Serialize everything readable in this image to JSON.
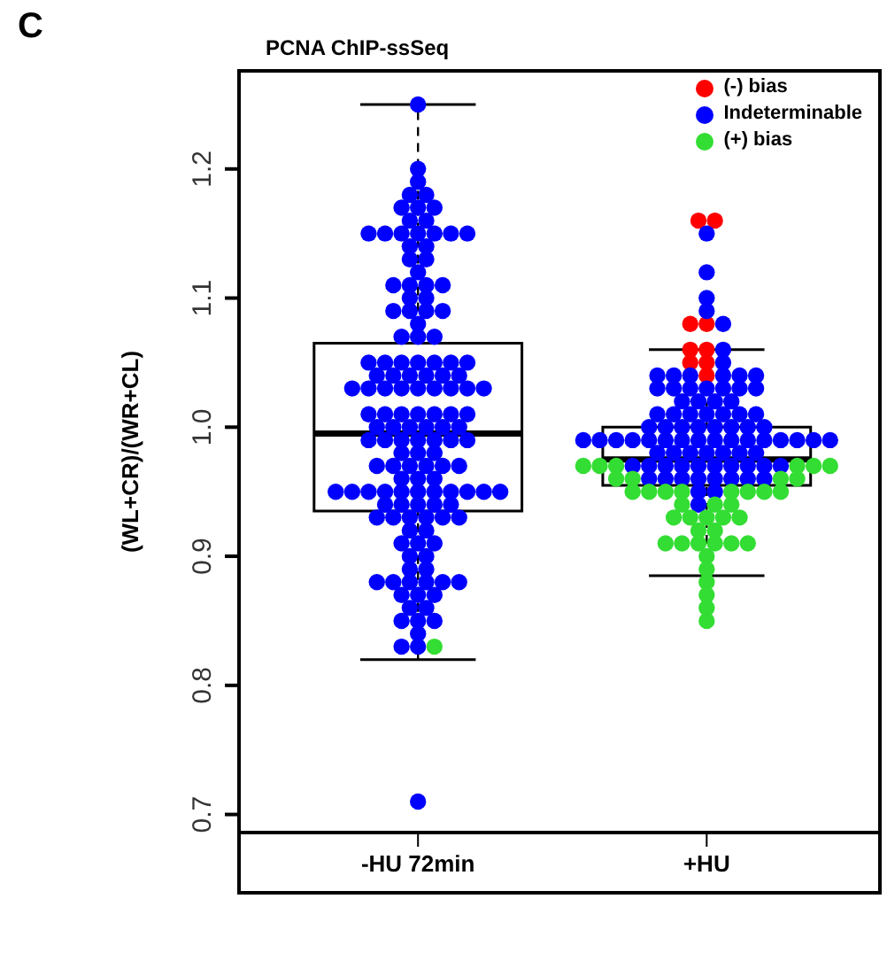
{
  "chart_data": {
    "type": "box",
    "title": "PCNA ChIP-ssSeq",
    "ylabel": "(WL+CR)/(WR+CL)",
    "annotations": [
      "C"
    ],
    "categories": [
      "-HU 72min",
      "+HU"
    ],
    "boxes": [
      {
        "low": 0.82,
        "q1": 0.935,
        "median": 0.995,
        "q3": 1.065,
        "high": 1.25
      },
      {
        "low": 0.885,
        "q1": 0.955,
        "median": 0.975,
        "q3": 1.0,
        "high": 1.06
      }
    ],
    "ylim": [
      0.686,
      1.276
    ],
    "yticks": [
      0.7,
      0.8,
      0.9,
      {
        "value": 1,
        "label": "1.0"
      },
      1.1,
      1.2
    ],
    "legend": "top right",
    "marker": "circle",
    "series": [
      {
        "name": "(-) bias",
        "type": "scatter",
        "color": "#ff0000",
        "x": [
          "+HU",
          "+HU",
          "+HU",
          "+HU",
          "+HU",
          "+HU",
          "+HU",
          "+HU",
          "+HU"
        ],
        "values": [
          1.16,
          1.16,
          1.08,
          1.08,
          1.06,
          1.06,
          1.05,
          1.05,
          1.04
        ]
      },
      {
        "name": "Indeterminable",
        "type": "scatter",
        "color": "#0000ff",
        "x": [
          "-HU 72min",
          "-HU 72min",
          "-HU 72min",
          "-HU 72min",
          "-HU 72min",
          "-HU 72min",
          "-HU 72min",
          "-HU 72min",
          "-HU 72min",
          "-HU 72min",
          "-HU 72min",
          "-HU 72min",
          "-HU 72min",
          "-HU 72min",
          "-HU 72min",
          "-HU 72min",
          "-HU 72min",
          "-HU 72min",
          "-HU 72min",
          "-HU 72min",
          "-HU 72min",
          "-HU 72min",
          "-HU 72min",
          "-HU 72min",
          "-HU 72min",
          "-HU 72min",
          "-HU 72min",
          "-HU 72min",
          "-HU 72min",
          "-HU 72min",
          "-HU 72min",
          "-HU 72min",
          "-HU 72min",
          "-HU 72min",
          "-HU 72min",
          "-HU 72min",
          "-HU 72min",
          "-HU 72min",
          "-HU 72min",
          "-HU 72min",
          "-HU 72min",
          "-HU 72min",
          "-HU 72min",
          "-HU 72min",
          "-HU 72min",
          "-HU 72min",
          "-HU 72min",
          "-HU 72min",
          "-HU 72min",
          "-HU 72min",
          "-HU 72min",
          "-HU 72min",
          "-HU 72min",
          "-HU 72min",
          "-HU 72min",
          "-HU 72min",
          "-HU 72min",
          "-HU 72min",
          "-HU 72min",
          "-HU 72min",
          "-HU 72min",
          "-HU 72min",
          "-HU 72min",
          "-HU 72min",
          "-HU 72min",
          "-HU 72min",
          "-HU 72min",
          "-HU 72min",
          "-HU 72min",
          "-HU 72min",
          "-HU 72min",
          "-HU 72min",
          "-HU 72min",
          "-HU 72min",
          "-HU 72min",
          "-HU 72min",
          "-HU 72min",
          "-HU 72min",
          "-HU 72min",
          "-HU 72min",
          "-HU 72min",
          "-HU 72min",
          "-HU 72min",
          "-HU 72min",
          "-HU 72min",
          "-HU 72min",
          "-HU 72min",
          "-HU 72min",
          "-HU 72min",
          "-HU 72min",
          "-HU 72min",
          "-HU 72min",
          "-HU 72min",
          "-HU 72min",
          "-HU 72min",
          "-HU 72min",
          "-HU 72min",
          "-HU 72min",
          "-HU 72min",
          "-HU 72min",
          "-HU 72min",
          "-HU 72min",
          "-HU 72min",
          "-HU 72min",
          "-HU 72min",
          "-HU 72min",
          "-HU 72min",
          "-HU 72min",
          "-HU 72min",
          "-HU 72min",
          "-HU 72min",
          "-HU 72min",
          "-HU 72min",
          "-HU 72min",
          "-HU 72min",
          "-HU 72min",
          "-HU 72min",
          "-HU 72min",
          "-HU 72min",
          "-HU 72min",
          "-HU 72min",
          "-HU 72min",
          "-HU 72min",
          "-HU 72min",
          "-HU 72min",
          "-HU 72min",
          "-HU 72min",
          "-HU 72min",
          "-HU 72min",
          "-HU 72min",
          "-HU 72min",
          "-HU 72min",
          "-HU 72min",
          "-HU 72min",
          "-HU 72min",
          "-HU 72min",
          "-HU 72min",
          "-HU 72min",
          "-HU 72min",
          "+HU",
          "+HU",
          "+HU",
          "+HU",
          "+HU",
          "+HU",
          "+HU",
          "+HU",
          "+HU",
          "+HU",
          "+HU",
          "+HU",
          "+HU",
          "+HU",
          "+HU",
          "+HU",
          "+HU",
          "+HU",
          "+HU",
          "+HU",
          "+HU",
          "+HU",
          "+HU",
          "+HU",
          "+HU",
          "+HU",
          "+HU",
          "+HU",
          "+HU",
          "+HU",
          "+HU",
          "+HU",
          "+HU",
          "+HU",
          "+HU",
          "+HU",
          "+HU",
          "+HU",
          "+HU",
          "+HU",
          "+HU",
          "+HU",
          "+HU",
          "+HU",
          "+HU",
          "+HU",
          "+HU",
          "+HU",
          "+HU",
          "+HU",
          "+HU",
          "+HU",
          "+HU",
          "+HU",
          "+HU",
          "+HU",
          "+HU",
          "+HU",
          "+HU",
          "+HU",
          "+HU",
          "+HU",
          "+HU",
          "+HU",
          "+HU",
          "+HU",
          "+HU",
          "+HU",
          "+HU",
          "+HU",
          "+HU",
          "+HU",
          "+HU",
          "+HU",
          "+HU",
          "+HU",
          "+HU",
          "+HU",
          "+HU",
          "+HU",
          "+HU",
          "+HU",
          "+HU"
        ],
        "values": [
          1.25,
          1.2,
          1.19,
          1.18,
          1.18,
          1.17,
          1.17,
          1.17,
          1.16,
          1.16,
          1.15,
          1.15,
          1.15,
          1.15,
          1.15,
          1.15,
          1.15,
          1.14,
          1.14,
          1.13,
          1.13,
          1.12,
          1.11,
          1.11,
          1.11,
          1.11,
          1.1,
          1.1,
          1.09,
          1.09,
          1.09,
          1.09,
          1.08,
          1.07,
          1.07,
          1.07,
          1.05,
          1.05,
          1.05,
          1.05,
          1.05,
          1.05,
          1.05,
          1.04,
          1.04,
          1.04,
          1.04,
          1.04,
          1.04,
          1.03,
          1.03,
          1.03,
          1.03,
          1.03,
          1.03,
          1.03,
          1.03,
          1.03,
          1.01,
          1.01,
          1.01,
          1.01,
          1.01,
          1.01,
          1.01,
          1.0,
          1.0,
          1.0,
          1.0,
          1.0,
          1.0,
          0.99,
          0.99,
          0.99,
          0.99,
          0.99,
          0.99,
          0.99,
          0.98,
          0.98,
          0.98,
          0.97,
          0.97,
          0.97,
          0.97,
          0.97,
          0.97,
          0.96,
          0.96,
          0.96,
          0.95,
          0.95,
          0.95,
          0.95,
          0.95,
          0.95,
          0.95,
          0.95,
          0.95,
          0.95,
          0.95,
          0.94,
          0.94,
          0.94,
          0.94,
          0.94,
          0.93,
          0.93,
          0.93,
          0.93,
          0.93,
          0.93,
          0.92,
          0.92,
          0.91,
          0.91,
          0.91,
          0.9,
          0.9,
          0.89,
          0.89,
          0.88,
          0.88,
          0.88,
          0.88,
          0.88,
          0.88,
          0.87,
          0.87,
          0.87,
          0.86,
          0.86,
          0.85,
          0.85,
          0.85,
          0.84,
          0.83,
          0.83,
          0.71,
          1.15,
          1.12,
          1.1,
          1.09,
          1.08,
          1.06,
          1.05,
          1.04,
          1.04,
          1.04,
          1.04,
          1.04,
          1.04,
          1.03,
          1.03,
          1.03,
          1.03,
          1.03,
          1.03,
          1.03,
          1.02,
          1.02,
          1.02,
          1.02,
          1.01,
          1.01,
          1.01,
          1.01,
          1.01,
          1.01,
          1.01,
          1.0,
          1.0,
          1.0,
          1.0,
          1.0,
          1.0,
          1.0,
          1.0,
          0.99,
          0.99,
          0.99,
          0.99,
          0.99,
          0.99,
          0.99,
          0.99,
          0.99,
          0.99,
          0.99,
          0.99,
          0.99,
          0.99,
          0.99,
          0.99,
          0.98,
          0.98,
          0.98,
          0.98,
          0.98,
          0.98,
          0.98,
          0.97,
          0.97,
          0.97,
          0.97,
          0.97,
          0.97,
          0.97,
          0.97,
          0.97,
          0.97,
          0.96,
          0.96,
          0.96,
          0.96,
          0.96,
          0.96,
          0.96,
          0.96,
          0.95,
          0.95,
          0.94
        ]
      },
      {
        "name": "(+) bias",
        "type": "scatter",
        "color": "#33dd33",
        "x": [
          "-HU 72min",
          "+HU",
          "+HU",
          "+HU",
          "+HU",
          "+HU",
          "+HU",
          "+HU",
          "+HU",
          "+HU",
          "+HU",
          "+HU",
          "+HU",
          "+HU",
          "+HU",
          "+HU",
          "+HU",
          "+HU",
          "+HU",
          "+HU",
          "+HU",
          "+HU",
          "+HU",
          "+HU",
          "+HU",
          "+HU",
          "+HU",
          "+HU",
          "+HU",
          "+HU",
          "+HU",
          "+HU",
          "+HU",
          "+HU",
          "+HU",
          "+HU",
          "+HU",
          "+HU",
          "+HU",
          "+HU",
          "+HU"
        ],
        "values": [
          0.83,
          0.97,
          0.97,
          0.97,
          0.97,
          0.97,
          0.97,
          0.96,
          0.96,
          0.96,
          0.96,
          0.95,
          0.95,
          0.95,
          0.95,
          0.95,
          0.95,
          0.95,
          0.95,
          0.94,
          0.94,
          0.94,
          0.93,
          0.93,
          0.93,
          0.93,
          0.93,
          0.92,
          0.92,
          0.91,
          0.91,
          0.91,
          0.91,
          0.91,
          0.91,
          0.9,
          0.89,
          0.88,
          0.87,
          0.86,
          0.85
        ]
      }
    ]
  }
}
